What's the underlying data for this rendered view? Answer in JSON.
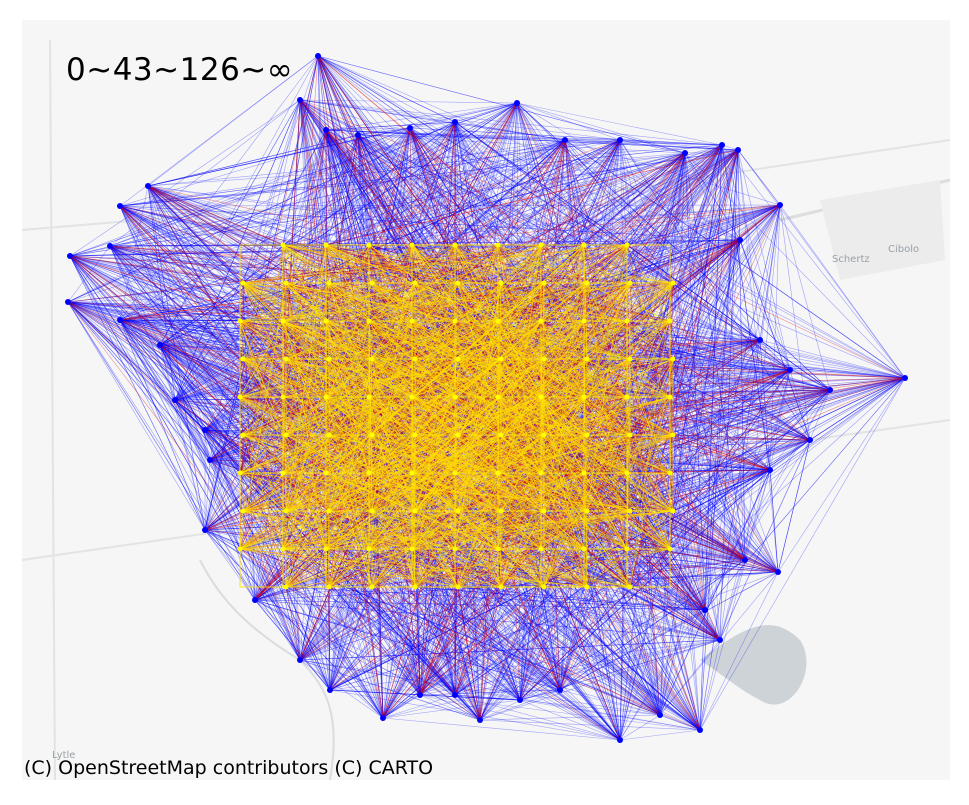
{
  "legend": {
    "bins_label": "0~43~126~∞"
  },
  "attribution": "(C) OpenStreetMap contributors (C) CARTO",
  "basemap": {
    "places": [
      "Schertz",
      "Cibolo",
      "Lytle"
    ]
  },
  "colors": {
    "low": "#0000ff",
    "mid": "#dd0000",
    "high": "#ffe000",
    "node": "#0000ff",
    "node_core": "#ffff00",
    "basemap_bg": "#f5f6f5",
    "road": "#e2e4e4",
    "water": "#cdd3d6"
  },
  "flow_bins": [
    {
      "range": "0~43",
      "color": "#0000ff"
    },
    {
      "range": "43~126",
      "color": "#dd0000"
    },
    {
      "range": "126~∞",
      "color": "#ffe000"
    }
  ]
}
